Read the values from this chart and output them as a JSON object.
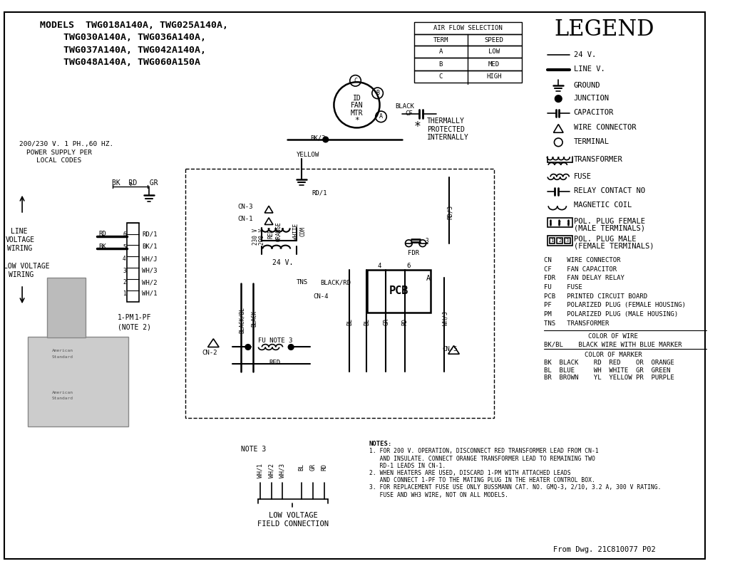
{
  "title_line1": "MODELS  TWG018A140A, TWG025A140A,",
  "title_line2": "TWG030A140A, TWG036A140A,",
  "title_line3": "TWG037A140A, TWG042A140A,",
  "title_line4": "TWG048A140A, TWG060A150A",
  "legend_title": "LEGEND",
  "airflow_rows": [
    [
      "A",
      "LOW"
    ],
    [
      "B",
      "MED"
    ],
    [
      "C",
      "HIGH"
    ]
  ],
  "abbreviations": [
    "CN    WIRE CONNECTOR",
    "CF    FAN CAPACITOR",
    "FDR   FAN DELAY RELAY",
    "FU    FUSE",
    "PCB   PRINTED CIRCUIT BOARD",
    "PF    POLARIZED PLUG (FEMALE HOUSING)",
    "PM    POLARIZED PLUG (MALE HOUSING)",
    "TNS   TRANSFORMER"
  ],
  "color_wire_label": "COLOR OF WIRE",
  "color_bkbl": "BK/BL    BLACK WIRE WITH BLUE MARKER",
  "color_marker_label": "COLOR OF MARKER",
  "color_row1": "BK  BLACK    RD  RED    OR  ORANGE",
  "color_row2": "BL  BLUE     WH  WHITE  GR  GREEN",
  "color_row3": "BR  BROWN    YL  YELLOW PR  PURPLE",
  "notes": [
    "NOTES:",
    "1. FOR 200 V. OPERATION, DISCONNECT RED TRANSFORMER LEAD FROM CN-1",
    "   AND INSULATE. CONNECT ORANGE TRANSFORMER LEAD TO REMAINING TWO",
    "   RD-1 LEADS IN CN-1.",
    "2. WHEN HEATERS ARE USED, DISCARD 1-PM WITH ATTACHED LEADS",
    "   AND CONNECT 1-PF TO THE MATING PLUG IN THE HEATER CONTROL BOX.",
    "3. FOR REPLACEMENT FUSE USE ONLY BUSSMANN CAT. NO. GMQ-3, 2/10, 3.2 A, 300 V RATING.",
    "   FUSE AND WH3 WIRE, NOT ON ALL MODELS."
  ],
  "footer": "From Dwg. 21C810077 P02",
  "bg_color": "#FFFFFF",
  "line_color": "#000000"
}
